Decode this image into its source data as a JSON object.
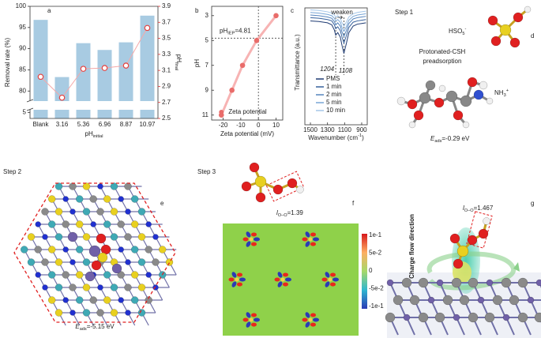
{
  "chart_data": [
    {
      "type": "bar",
      "label": "a",
      "categories": [
        "Blank",
        "3.16",
        "5.36",
        "6.96",
        "8.87",
        "10.97"
      ],
      "series": [
        {
          "color": "#a8cbe2",
          "values": [
            96.8,
            83.3,
            91.3,
            89.7,
            91.5,
            97.8
          ]
        },
        {
          "color": "#f4a9a9",
          "marker_color": "#e5413f",
          "axis": "y2",
          "values": [
            3.02,
            2.76,
            3.12,
            3.13,
            3.16,
            3.63
          ]
        }
      ],
      "y_label": "Removal rate (%)",
      "x_label": "pH",
      "x_label_sub": "initial",
      "y2_label": "pH",
      "y2_label_sub": "final",
      "y2_color": "#e03030",
      "ylim": [
        0,
        100
      ],
      "axis_break": [
        6,
        78
      ],
      "yticks": [
        5,
        80,
        85,
        90,
        95,
        100
      ],
      "y2lim": [
        2.5,
        3.9
      ],
      "y2ticks": [
        2.5,
        2.7,
        2.9,
        3.1,
        3.3,
        3.5,
        3.7,
        3.9
      ]
    },
    {
      "type": "scatter",
      "label": "b",
      "name": "Zeta potential",
      "color": "#f7b3b3",
      "marker_color": "#e96c6a",
      "x": [
        -21,
        -15,
        -9,
        -1,
        10
      ],
      "values": [
        11,
        9,
        7,
        5,
        3
      ],
      "xlim": [
        -26.5,
        13.8
      ],
      "xticks": [
        -20,
        -10,
        0,
        10
      ],
      "ylim": [
        2.25,
        11.4
      ],
      "yticks": [
        3,
        5,
        7,
        9,
        11
      ],
      "y_inverted": true,
      "x_label": "Zeta potential (mV)",
      "y_label": "pH",
      "annotation": {
        "text": "pH",
        "sub": "IEP",
        "suffix": "=4.81",
        "value": 4.81
      }
    },
    {
      "type": "line",
      "label": "c",
      "x": [
        1500,
        1400,
        1300,
        1250,
        1220,
        1204,
        1180,
        1150,
        1130,
        1108,
        1080,
        1050,
        1000,
        950,
        900,
        850
      ],
      "series": [
        {
          "name": "PMS",
          "color": "#1f3b73",
          "values": [
            0.8,
            0.79,
            0.77,
            0.74,
            0.66,
            0.58,
            0.62,
            0.55,
            0.42,
            0.3,
            0.45,
            0.62,
            0.72,
            0.75,
            0.76,
            0.77
          ]
        },
        {
          "name": "1 min",
          "color": "#35609c",
          "values": [
            0.85,
            0.84,
            0.82,
            0.8,
            0.74,
            0.68,
            0.71,
            0.65,
            0.55,
            0.46,
            0.57,
            0.7,
            0.78,
            0.8,
            0.81,
            0.82
          ]
        },
        {
          "name": "2 min",
          "color": "#5584bd",
          "values": [
            0.89,
            0.88,
            0.86,
            0.84,
            0.79,
            0.74,
            0.77,
            0.72,
            0.63,
            0.56,
            0.65,
            0.76,
            0.83,
            0.85,
            0.86,
            0.87
          ]
        },
        {
          "name": "5 min",
          "color": "#78a6d6",
          "values": [
            0.93,
            0.92,
            0.9,
            0.88,
            0.84,
            0.8,
            0.82,
            0.78,
            0.7,
            0.64,
            0.71,
            0.81,
            0.87,
            0.89,
            0.9,
            0.91
          ]
        },
        {
          "name": "10 min",
          "color": "#a4c6e8",
          "values": [
            0.97,
            0.96,
            0.94,
            0.92,
            0.89,
            0.86,
            0.88,
            0.84,
            0.77,
            0.72,
            0.78,
            0.86,
            0.91,
            0.93,
            0.94,
            0.95
          ]
        }
      ],
      "xlim": [
        1565,
        835
      ],
      "xticks": [
        1500,
        1300,
        1100,
        900
      ],
      "ylim": [
        -0.8,
        1
      ],
      "peaks": [
        1204,
        1108
      ],
      "annotation": "weaken",
      "x_label": "Wavenumber (cm",
      "x_label_sup": "-1",
      "x_label_end": ")",
      "y_label": "Transmittance (a.u.)"
    }
  ],
  "panel_d": {
    "label": "d",
    "step": "Step 1",
    "ion": "HSO",
    "ion_sub": "5",
    "ion_sup": "-",
    "caption": "Protonated-CSH",
    "caption2": "preadsorption",
    "group": "NH",
    "group_sub": "3",
    "group_sup": "+",
    "energy": {
      "symbol": "E",
      "sub": "ads",
      "value": "=-0.29 eV"
    }
  },
  "panel_e": {
    "label": "e",
    "step": "Step 2",
    "energy": {
      "symbol": "E",
      "sub": "ads",
      "value": "=-5.15 eV"
    }
  },
  "panel_f": {
    "label": "f",
    "step": "Step 3",
    "bond": {
      "symbol": "l",
      "sub": "O–O",
      "value": "=1.39"
    },
    "colorbar": [
      "1e-1",
      "5e-2",
      "0",
      "-5e-2",
      "-1e-1"
    ]
  },
  "panel_g": {
    "label": "g",
    "arrow_text": "Charge flow direction",
    "bond": {
      "symbol": "l",
      "sub": "O–O",
      "value": "=1.467"
    }
  }
}
